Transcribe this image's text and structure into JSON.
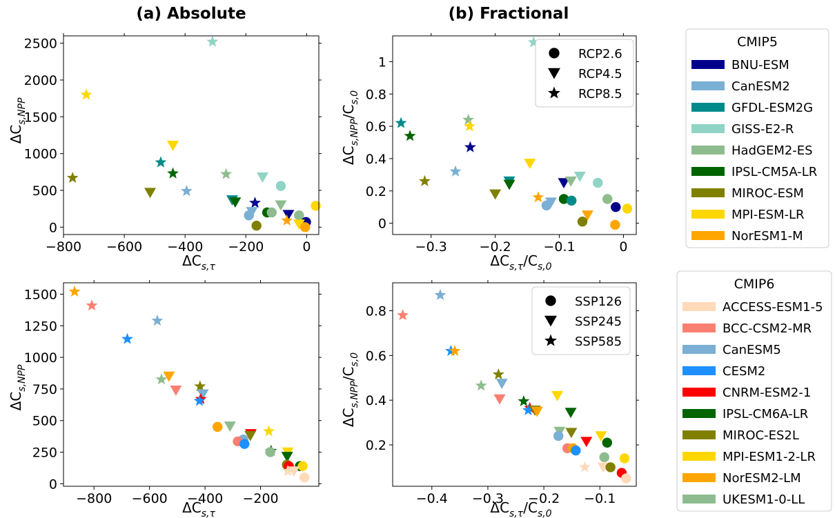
{
  "titles": {
    "left": "(a) Absolute",
    "right": "(b) Fractional"
  },
  "axis_labels": {
    "abs_x": "ΔC",
    "abs_x_sub": "s,τ",
    "abs_y": "ΔC",
    "abs_y_sub": "s,NPP",
    "frac_x": "ΔC",
    "frac_x_sub": "s,τ",
    "frac_x_den": "/C",
    "frac_x_den_sub": "s,0",
    "frac_y": "ΔC",
    "frac_y_sub": "s,NPP",
    "frac_y_den": "/C",
    "frac_y_den_sub": "s,0"
  },
  "legends": {
    "cmip5": {
      "title": "CMIP5",
      "models": [
        {
          "name": "BNU-ESM",
          "color": "#00008b"
        },
        {
          "name": "CanESM2",
          "color": "#7bafd4"
        },
        {
          "name": "GFDL-ESM2G",
          "color": "#008b8b"
        },
        {
          "name": "GISS-E2-R",
          "color": "#8fd4c4"
        },
        {
          "name": "HadGEM2-ES",
          "color": "#8fbc8f"
        },
        {
          "name": "IPSL-CM5A-LR",
          "color": "#006400"
        },
        {
          "name": "MIROC-ESM",
          "color": "#808000"
        },
        {
          "name": "MPI-ESM-LR",
          "color": "#ffd700"
        },
        {
          "name": "NorESM1-M",
          "color": "#ffa500"
        }
      ],
      "scenarios": [
        {
          "name": "RCP2.6",
          "marker": "circle"
        },
        {
          "name": "RCP4.5",
          "marker": "triangle"
        },
        {
          "name": "RCP8.5",
          "marker": "star"
        }
      ]
    },
    "cmip6": {
      "title": "CMIP6",
      "models": [
        {
          "name": "ACCESS-ESM1-5",
          "color": "#ffdab9"
        },
        {
          "name": "BCC-CSM2-MR",
          "color": "#fa8072"
        },
        {
          "name": "CanESM5",
          "color": "#7bafd4"
        },
        {
          "name": "CESM2",
          "color": "#1e90ff"
        },
        {
          "name": "CNRM-ESM2-1",
          "color": "#ff0000"
        },
        {
          "name": "IPSL-CM6A-LR",
          "color": "#006400"
        },
        {
          "name": "MIROC-ES2L",
          "color": "#808000"
        },
        {
          "name": "MPI-ESM1-2-LR",
          "color": "#ffd700"
        },
        {
          "name": "NorESM2-LM",
          "color": "#ffa500"
        },
        {
          "name": "UKESM1-0-LL",
          "color": "#8fbc8f"
        }
      ],
      "scenarios": [
        {
          "name": "SSP126",
          "marker": "circle"
        },
        {
          "name": "SSP245",
          "marker": "triangle"
        },
        {
          "name": "SSP585",
          "marker": "star"
        }
      ]
    }
  },
  "chart_data": [
    {
      "id": "cmip5_abs",
      "type": "scatter",
      "group": "cmip5",
      "title": "(a) Absolute",
      "xlim": [
        -800,
        40
      ],
      "ylim": [
        -100,
        2600
      ],
      "xticks": [
        -800,
        -600,
        -400,
        -200,
        0
      ],
      "yticks": [
        0,
        500,
        1000,
        1500,
        2000,
        2500
      ],
      "points": [
        {
          "model": "GISS-E2-R",
          "marker": "star",
          "x": -310,
          "y": 2520
        },
        {
          "model": "MPI-ESM-LR",
          "marker": "star",
          "x": -725,
          "y": 1800
        },
        {
          "model": "MPI-ESM-LR",
          "marker": "triangle",
          "x": -440,
          "y": 1110
        },
        {
          "model": "GFDL-ESM2G",
          "marker": "star",
          "x": -480,
          "y": 880
        },
        {
          "model": "IPSL-CM5A-LR",
          "marker": "star",
          "x": -440,
          "y": 730
        },
        {
          "model": "HadGEM2-ES",
          "marker": "star",
          "x": -265,
          "y": 720
        },
        {
          "model": "GISS-E2-R",
          "marker": "triangle",
          "x": -145,
          "y": 680
        },
        {
          "model": "MIROC-ESM",
          "marker": "star",
          "x": -770,
          "y": 670
        },
        {
          "model": "CanESM2",
          "marker": "star",
          "x": -395,
          "y": 490
        },
        {
          "model": "MIROC-ESM",
          "marker": "triangle",
          "x": -515,
          "y": 470
        },
        {
          "model": "GISS-E2-R",
          "marker": "circle",
          "x": -85,
          "y": 560
        },
        {
          "model": "GFDL-ESM2G",
          "marker": "triangle",
          "x": -245,
          "y": 370
        },
        {
          "model": "IPSL-CM5A-LR",
          "marker": "triangle",
          "x": -235,
          "y": 340
        },
        {
          "model": "BNU-ESM",
          "marker": "star",
          "x": -170,
          "y": 330
        },
        {
          "model": "HadGEM2-ES",
          "marker": "triangle",
          "x": -85,
          "y": 300
        },
        {
          "model": "MPI-ESM-LR",
          "marker": "circle",
          "x": 30,
          "y": 290
        },
        {
          "model": "CanESM2",
          "marker": "circle",
          "x": -190,
          "y": 160
        },
        {
          "model": "CanESM2",
          "marker": "triangle",
          "x": -180,
          "y": 210
        },
        {
          "model": "IPSL-CM5A-LR",
          "marker": "circle",
          "x": -130,
          "y": 200
        },
        {
          "model": "HadGEM2-ES",
          "marker": "circle",
          "x": -115,
          "y": 200
        },
        {
          "model": "BNU-ESM",
          "marker": "triangle",
          "x": -60,
          "y": 170
        },
        {
          "model": "HadGEM2-ES",
          "marker": "circle",
          "x": -25,
          "y": 160
        },
        {
          "model": "MIROC-ESM",
          "marker": "circle",
          "x": -165,
          "y": 20
        },
        {
          "model": "NorESM1-M",
          "marker": "star",
          "x": -65,
          "y": 90
        },
        {
          "model": "BNU-ESM",
          "marker": "circle",
          "x": -2,
          "y": 70
        },
        {
          "model": "MPI-ESM-LR",
          "marker": "triangle",
          "x": -25,
          "y": 40
        },
        {
          "model": "NorESM1-M",
          "marker": "circle",
          "x": -5,
          "y": 0
        }
      ]
    },
    {
      "id": "cmip5_frac",
      "type": "scatter",
      "group": "cmip5",
      "title": "(b) Fractional",
      "xlim": [
        -0.36,
        0.02
      ],
      "ylim": [
        -0.07,
        1.16
      ],
      "xticks": [
        -0.3,
        -0.2,
        -0.1,
        0.0
      ],
      "yticks": [
        0.0,
        0.2,
        0.4,
        0.6,
        0.8,
        1.0
      ],
      "points": [
        {
          "model": "GISS-E2-R",
          "marker": "star",
          "x": -0.14,
          "y": 1.12
        },
        {
          "model": "HadGEM2-ES",
          "marker": "star",
          "x": -0.242,
          "y": 0.64
        },
        {
          "model": "GFDL-ESM2G",
          "marker": "star",
          "x": -0.347,
          "y": 0.62
        },
        {
          "model": "MPI-ESM-LR",
          "marker": "star",
          "x": -0.24,
          "y": 0.6
        },
        {
          "model": "IPSL-CM5A-LR",
          "marker": "star",
          "x": -0.333,
          "y": 0.54
        },
        {
          "model": "BNU-ESM",
          "marker": "star",
          "x": -0.239,
          "y": 0.47
        },
        {
          "model": "MPI-ESM-LR",
          "marker": "triangle",
          "x": -0.146,
          "y": 0.37
        },
        {
          "model": "CanESM2",
          "marker": "star",
          "x": -0.262,
          "y": 0.32
        },
        {
          "model": "GISS-E2-R",
          "marker": "triangle",
          "x": -0.068,
          "y": 0.29
        },
        {
          "model": "MIROC-ESM",
          "marker": "star",
          "x": -0.31,
          "y": 0.26
        },
        {
          "model": "GFDL-ESM2G",
          "marker": "triangle",
          "x": -0.178,
          "y": 0.26
        },
        {
          "model": "IPSL-CM5A-LR",
          "marker": "triangle",
          "x": -0.178,
          "y": 0.24
        },
        {
          "model": "BNU-ESM",
          "marker": "triangle",
          "x": -0.093,
          "y": 0.25
        },
        {
          "model": "HadGEM2-ES",
          "marker": "triangle",
          "x": -0.082,
          "y": 0.26
        },
        {
          "model": "GISS-E2-R",
          "marker": "circle",
          "x": -0.04,
          "y": 0.25
        },
        {
          "model": "MIROC-ESM",
          "marker": "triangle",
          "x": -0.2,
          "y": 0.18
        },
        {
          "model": "NorESM1-M",
          "marker": "star",
          "x": -0.133,
          "y": 0.16
        },
        {
          "model": "CanESM2",
          "marker": "triangle",
          "x": -0.113,
          "y": 0.13
        },
        {
          "model": "CanESM2",
          "marker": "circle",
          "x": -0.12,
          "y": 0.11
        },
        {
          "model": "IPSL-CM5A-LR",
          "marker": "circle",
          "x": -0.093,
          "y": 0.15
        },
        {
          "model": "GFDL-ESM2G",
          "marker": "circle",
          "x": -0.081,
          "y": 0.14
        },
        {
          "model": "HadGEM2-ES",
          "marker": "circle",
          "x": -0.025,
          "y": 0.15
        },
        {
          "model": "BNU-ESM",
          "marker": "circle",
          "x": -0.012,
          "y": 0.1
        },
        {
          "model": "MPI-ESM-LR",
          "marker": "circle",
          "x": 0.006,
          "y": 0.09
        },
        {
          "model": "NorESM1-M",
          "marker": "triangle",
          "x": -0.056,
          "y": 0.05
        },
        {
          "model": "MIROC-ESM",
          "marker": "circle",
          "x": -0.064,
          "y": 0.01
        },
        {
          "model": "NorESM1-M",
          "marker": "circle",
          "x": -0.013,
          "y": -0.01
        }
      ]
    },
    {
      "id": "cmip6_abs",
      "type": "scatter",
      "group": "cmip6",
      "title": "",
      "xlim": [
        -910,
        10
      ],
      "ylim": [
        -20,
        1590
      ],
      "xticks": [
        -800,
        -600,
        -400,
        -200
      ],
      "yticks": [
        0,
        250,
        500,
        750,
        1000,
        1250,
        1500
      ],
      "points": [
        {
          "model": "NorESM2-LM",
          "marker": "star",
          "x": -870,
          "y": 1520
        },
        {
          "model": "BCC-CSM2-MR",
          "marker": "star",
          "x": -808,
          "y": 1410
        },
        {
          "model": "CanESM5",
          "marker": "star",
          "x": -572,
          "y": 1290
        },
        {
          "model": "CESM2",
          "marker": "star",
          "x": -680,
          "y": 1145
        },
        {
          "model": "UKESM1-0-LL",
          "marker": "star",
          "x": -557,
          "y": 825
        },
        {
          "model": "NorESM2-LM",
          "marker": "triangle",
          "x": -530,
          "y": 850
        },
        {
          "model": "MIROC-ES2L",
          "marker": "star",
          "x": -418,
          "y": 770
        },
        {
          "model": "BCC-CSM2-MR",
          "marker": "triangle",
          "x": -505,
          "y": 740
        },
        {
          "model": "CanESM5",
          "marker": "triangle",
          "x": -408,
          "y": 710
        },
        {
          "model": "CNRM-ESM2-1",
          "marker": "star",
          "x": -415,
          "y": 670
        },
        {
          "model": "CESM2",
          "marker": "star",
          "x": -420,
          "y": 655
        },
        {
          "model": "NorESM2-LM",
          "marker": "circle",
          "x": -355,
          "y": 450
        },
        {
          "model": "UKESM1-0-LL",
          "marker": "triangle",
          "x": -310,
          "y": 455
        },
        {
          "model": "MPI-ESM1-2-LR",
          "marker": "star",
          "x": -170,
          "y": 415
        },
        {
          "model": "CNRM-ESM2-1",
          "marker": "triangle",
          "x": -235,
          "y": 395
        },
        {
          "model": "MIROC-ES2L",
          "marker": "triangle",
          "x": -237,
          "y": 380
        },
        {
          "model": "CanESM5",
          "marker": "circle",
          "x": -262,
          "y": 350
        },
        {
          "model": "BCC-CSM2-MR",
          "marker": "circle",
          "x": -282,
          "y": 335
        },
        {
          "model": "CESM2",
          "marker": "circle",
          "x": -258,
          "y": 315
        },
        {
          "model": "IPSL-CM6A-LR",
          "marker": "star",
          "x": -162,
          "y": 260
        },
        {
          "model": "UKESM1-0-LL",
          "marker": "circle",
          "x": -165,
          "y": 250
        },
        {
          "model": "MPI-ESM1-2-LR",
          "marker": "triangle",
          "x": -102,
          "y": 250
        },
        {
          "model": "IPSL-CM6A-LR",
          "marker": "triangle",
          "x": -104,
          "y": 215
        },
        {
          "model": "MIROC-ES2L",
          "marker": "circle",
          "x": -105,
          "y": 150
        },
        {
          "model": "CNRM-ESM2-1",
          "marker": "circle",
          "x": -98,
          "y": 140
        },
        {
          "model": "IPSL-CM6A-LR",
          "marker": "circle",
          "x": -58,
          "y": 140
        },
        {
          "model": "MPI-ESM1-2-LR",
          "marker": "circle",
          "x": -48,
          "y": 140
        },
        {
          "model": "ACCESS-ESM1-5",
          "marker": "star",
          "x": -102,
          "y": 100
        },
        {
          "model": "ACCESS-ESM1-5",
          "marker": "triangle",
          "x": -80,
          "y": 100
        },
        {
          "model": "ACCESS-ESM1-5",
          "marker": "circle",
          "x": -42,
          "y": 50
        }
      ]
    },
    {
      "id": "cmip6_frac",
      "type": "scatter",
      "group": "cmip6",
      "title": "",
      "xlim": [
        -0.47,
        -0.035
      ],
      "ylim": [
        0.015,
        0.925
      ],
      "xticks": [
        -0.4,
        -0.3,
        -0.2,
        -0.1
      ],
      "yticks": [
        0.2,
        0.4,
        0.6,
        0.8
      ],
      "points": [
        {
          "model": "CanESM5",
          "marker": "star",
          "x": -0.385,
          "y": 0.87
        },
        {
          "model": "BCC-CSM2-MR",
          "marker": "star",
          "x": -0.452,
          "y": 0.78
        },
        {
          "model": "CESM2",
          "marker": "star",
          "x": -0.366,
          "y": 0.62
        },
        {
          "model": "NorESM2-LM",
          "marker": "star",
          "x": -0.359,
          "y": 0.62
        },
        {
          "model": "MIROC-ES2L",
          "marker": "star",
          "x": -0.281,
          "y": 0.515
        },
        {
          "model": "CanESM5",
          "marker": "triangle",
          "x": -0.275,
          "y": 0.475
        },
        {
          "model": "UKESM1-0-LL",
          "marker": "star",
          "x": -0.312,
          "y": 0.465
        },
        {
          "model": "MPI-ESM1-2-LR",
          "marker": "triangle",
          "x": -0.176,
          "y": 0.42
        },
        {
          "model": "BCC-CSM2-MR",
          "marker": "triangle",
          "x": -0.279,
          "y": 0.405
        },
        {
          "model": "IPSL-CM6A-LR",
          "marker": "star",
          "x": -0.236,
          "y": 0.395
        },
        {
          "model": "CNRM-ESM2-1",
          "marker": "star",
          "x": -0.225,
          "y": 0.365
        },
        {
          "model": "CESM2",
          "marker": "star",
          "x": -0.228,
          "y": 0.355
        },
        {
          "model": "MIROC-ES2L",
          "marker": "triangle",
          "x": -0.216,
          "y": 0.355
        },
        {
          "model": "NorESM2-LM",
          "marker": "triangle",
          "x": -0.212,
          "y": 0.35
        },
        {
          "model": "IPSL-CM6A-LR",
          "marker": "triangle",
          "x": -0.152,
          "y": 0.345
        },
        {
          "model": "UKESM1-0-LL",
          "marker": "triangle",
          "x": -0.172,
          "y": 0.26
        },
        {
          "model": "MIROC-ES2L",
          "marker": "triangle",
          "x": -0.151,
          "y": 0.255
        },
        {
          "model": "CanESM5",
          "marker": "circle",
          "x": -0.174,
          "y": 0.24
        },
        {
          "model": "MPI-ESM1-2-LR",
          "marker": "triangle",
          "x": -0.098,
          "y": 0.24
        },
        {
          "model": "CNRM-ESM2-1",
          "marker": "triangle",
          "x": -0.124,
          "y": 0.215
        },
        {
          "model": "IPSL-CM6A-LR",
          "marker": "circle",
          "x": -0.087,
          "y": 0.21
        },
        {
          "model": "BCC-CSM2-MR",
          "marker": "circle",
          "x": -0.158,
          "y": 0.185
        },
        {
          "model": "NorESM2-LM",
          "marker": "circle",
          "x": -0.148,
          "y": 0.185
        },
        {
          "model": "CESM2",
          "marker": "circle",
          "x": -0.143,
          "y": 0.175
        },
        {
          "model": "UKESM1-0-LL",
          "marker": "circle",
          "x": -0.092,
          "y": 0.145
        },
        {
          "model": "MPI-ESM1-2-LR",
          "marker": "circle",
          "x": -0.056,
          "y": 0.14
        },
        {
          "model": "ACCESS-ESM1-5",
          "marker": "star",
          "x": -0.127,
          "y": 0.1
        },
        {
          "model": "ACCESS-ESM1-5",
          "marker": "triangle",
          "x": -0.094,
          "y": 0.1
        },
        {
          "model": "MIROC-ES2L",
          "marker": "circle",
          "x": -0.081,
          "y": 0.1
        },
        {
          "model": "CNRM-ESM2-1",
          "marker": "circle",
          "x": -0.061,
          "y": 0.075
        },
        {
          "model": "ACCESS-ESM1-5",
          "marker": "circle",
          "x": -0.053,
          "y": 0.05
        }
      ]
    }
  ]
}
